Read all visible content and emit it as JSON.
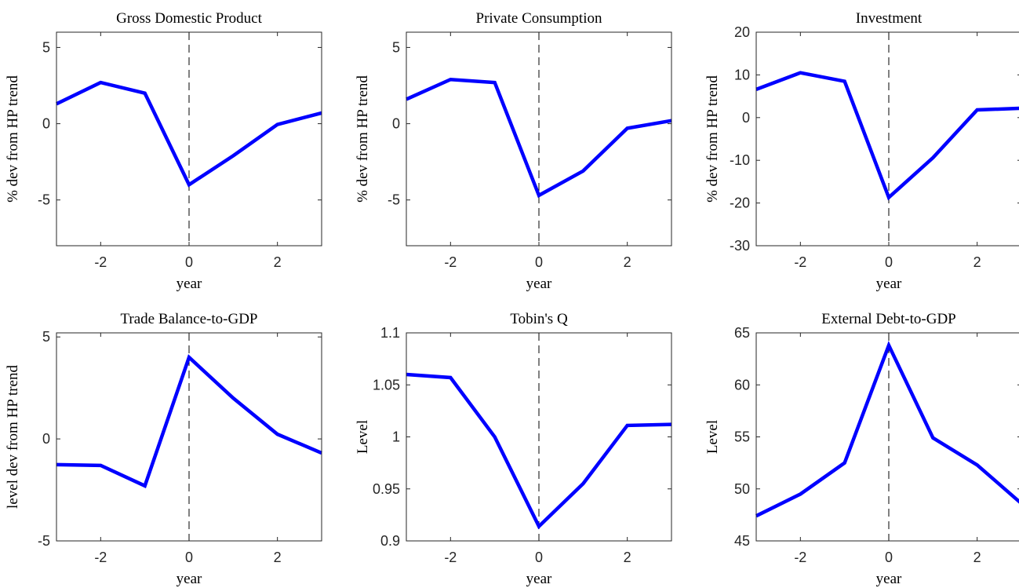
{
  "chart_data": [
    {
      "type": "line",
      "title": "Gross Domestic Product",
      "xlabel": "year",
      "ylabel": "% dev from HP trend",
      "x": [
        -3,
        -2,
        -1,
        0,
        1,
        2,
        3
      ],
      "series": [
        {
          "color": "#0000ff",
          "values": [
            1.3,
            2.7,
            2.0,
            -4.0,
            -2.1,
            -0.05,
            0.7
          ]
        }
      ],
      "xlim": [
        -3,
        3
      ],
      "xticks": [
        -2,
        0,
        2
      ],
      "ylim": [
        -8,
        6
      ],
      "yticks": [
        -5,
        0,
        5
      ],
      "vline": 0
    },
    {
      "type": "line",
      "title": "Private Consumption",
      "xlabel": "year",
      "ylabel": "% dev from HP trend",
      "x": [
        -3,
        -2,
        -1,
        0,
        1,
        2,
        3
      ],
      "series": [
        {
          "color": "#0000ff",
          "values": [
            1.6,
            2.9,
            2.7,
            -4.7,
            -3.1,
            -0.3,
            0.2
          ]
        }
      ],
      "xlim": [
        -3,
        3
      ],
      "xticks": [
        -2,
        0,
        2
      ],
      "ylim": [
        -8,
        6
      ],
      "yticks": [
        -5,
        0,
        5
      ],
      "vline": 0
    },
    {
      "type": "line",
      "title": "Investment",
      "xlabel": "year",
      "ylabel": "% dev from HP trend",
      "x": [
        -3,
        -2,
        -1,
        0,
        1,
        2,
        3
      ],
      "series": [
        {
          "color": "#0000ff",
          "values": [
            6.6,
            10.5,
            8.5,
            -18.7,
            -9.4,
            1.8,
            2.2
          ]
        }
      ],
      "xlim": [
        -3,
        3
      ],
      "xticks": [
        -2,
        0,
        2
      ],
      "ylim": [
        -30,
        20
      ],
      "yticks": [
        -30,
        -20,
        -10,
        0,
        10,
        20
      ],
      "vline": 0
    },
    {
      "type": "line",
      "title": "Trade Balance-to-GDP",
      "xlabel": "year",
      "ylabel": "level dev from HP trend",
      "x": [
        -3,
        -2,
        -1,
        0,
        1,
        2,
        3
      ],
      "series": [
        {
          "color": "#0000ff",
          "values": [
            -1.26,
            -1.3,
            -2.3,
            4.0,
            2.0,
            0.23,
            -0.69
          ]
        }
      ],
      "xlim": [
        -3,
        3
      ],
      "xticks": [
        -2,
        0,
        2
      ],
      "ylim": [
        -5,
        5.2
      ],
      "yticks": [
        -5,
        0,
        5
      ],
      "vline": 0
    },
    {
      "type": "line",
      "title": "Tobin's Q",
      "xlabel": "year",
      "ylabel": "Level",
      "x": [
        -3,
        -2,
        -1,
        0,
        1,
        2,
        3
      ],
      "series": [
        {
          "color": "#0000ff",
          "values": [
            1.06,
            1.057,
            1.0,
            0.914,
            0.955,
            1.011,
            1.012
          ]
        }
      ],
      "xlim": [
        -3,
        3
      ],
      "xticks": [
        -2,
        0,
        2
      ],
      "ylim": [
        0.9,
        1.1
      ],
      "yticks": [
        0.9,
        0.95,
        1,
        1.05,
        1.1
      ],
      "vline": 0
    },
    {
      "type": "line",
      "title": "External Debt-to-GDP",
      "xlabel": "year",
      "ylabel": "Level",
      "x": [
        -3,
        -2,
        -1,
        0,
        1,
        2,
        3
      ],
      "series": [
        {
          "color": "#0000ff",
          "values": [
            47.4,
            49.5,
            52.5,
            63.8,
            54.9,
            52.3,
            48.6
          ]
        }
      ],
      "xlim": [
        -3,
        3
      ],
      "xticks": [
        -2,
        0,
        2
      ],
      "ylim": [
        45,
        65
      ],
      "yticks": [
        45,
        50,
        55,
        60,
        65
      ],
      "vline": 0
    }
  ]
}
